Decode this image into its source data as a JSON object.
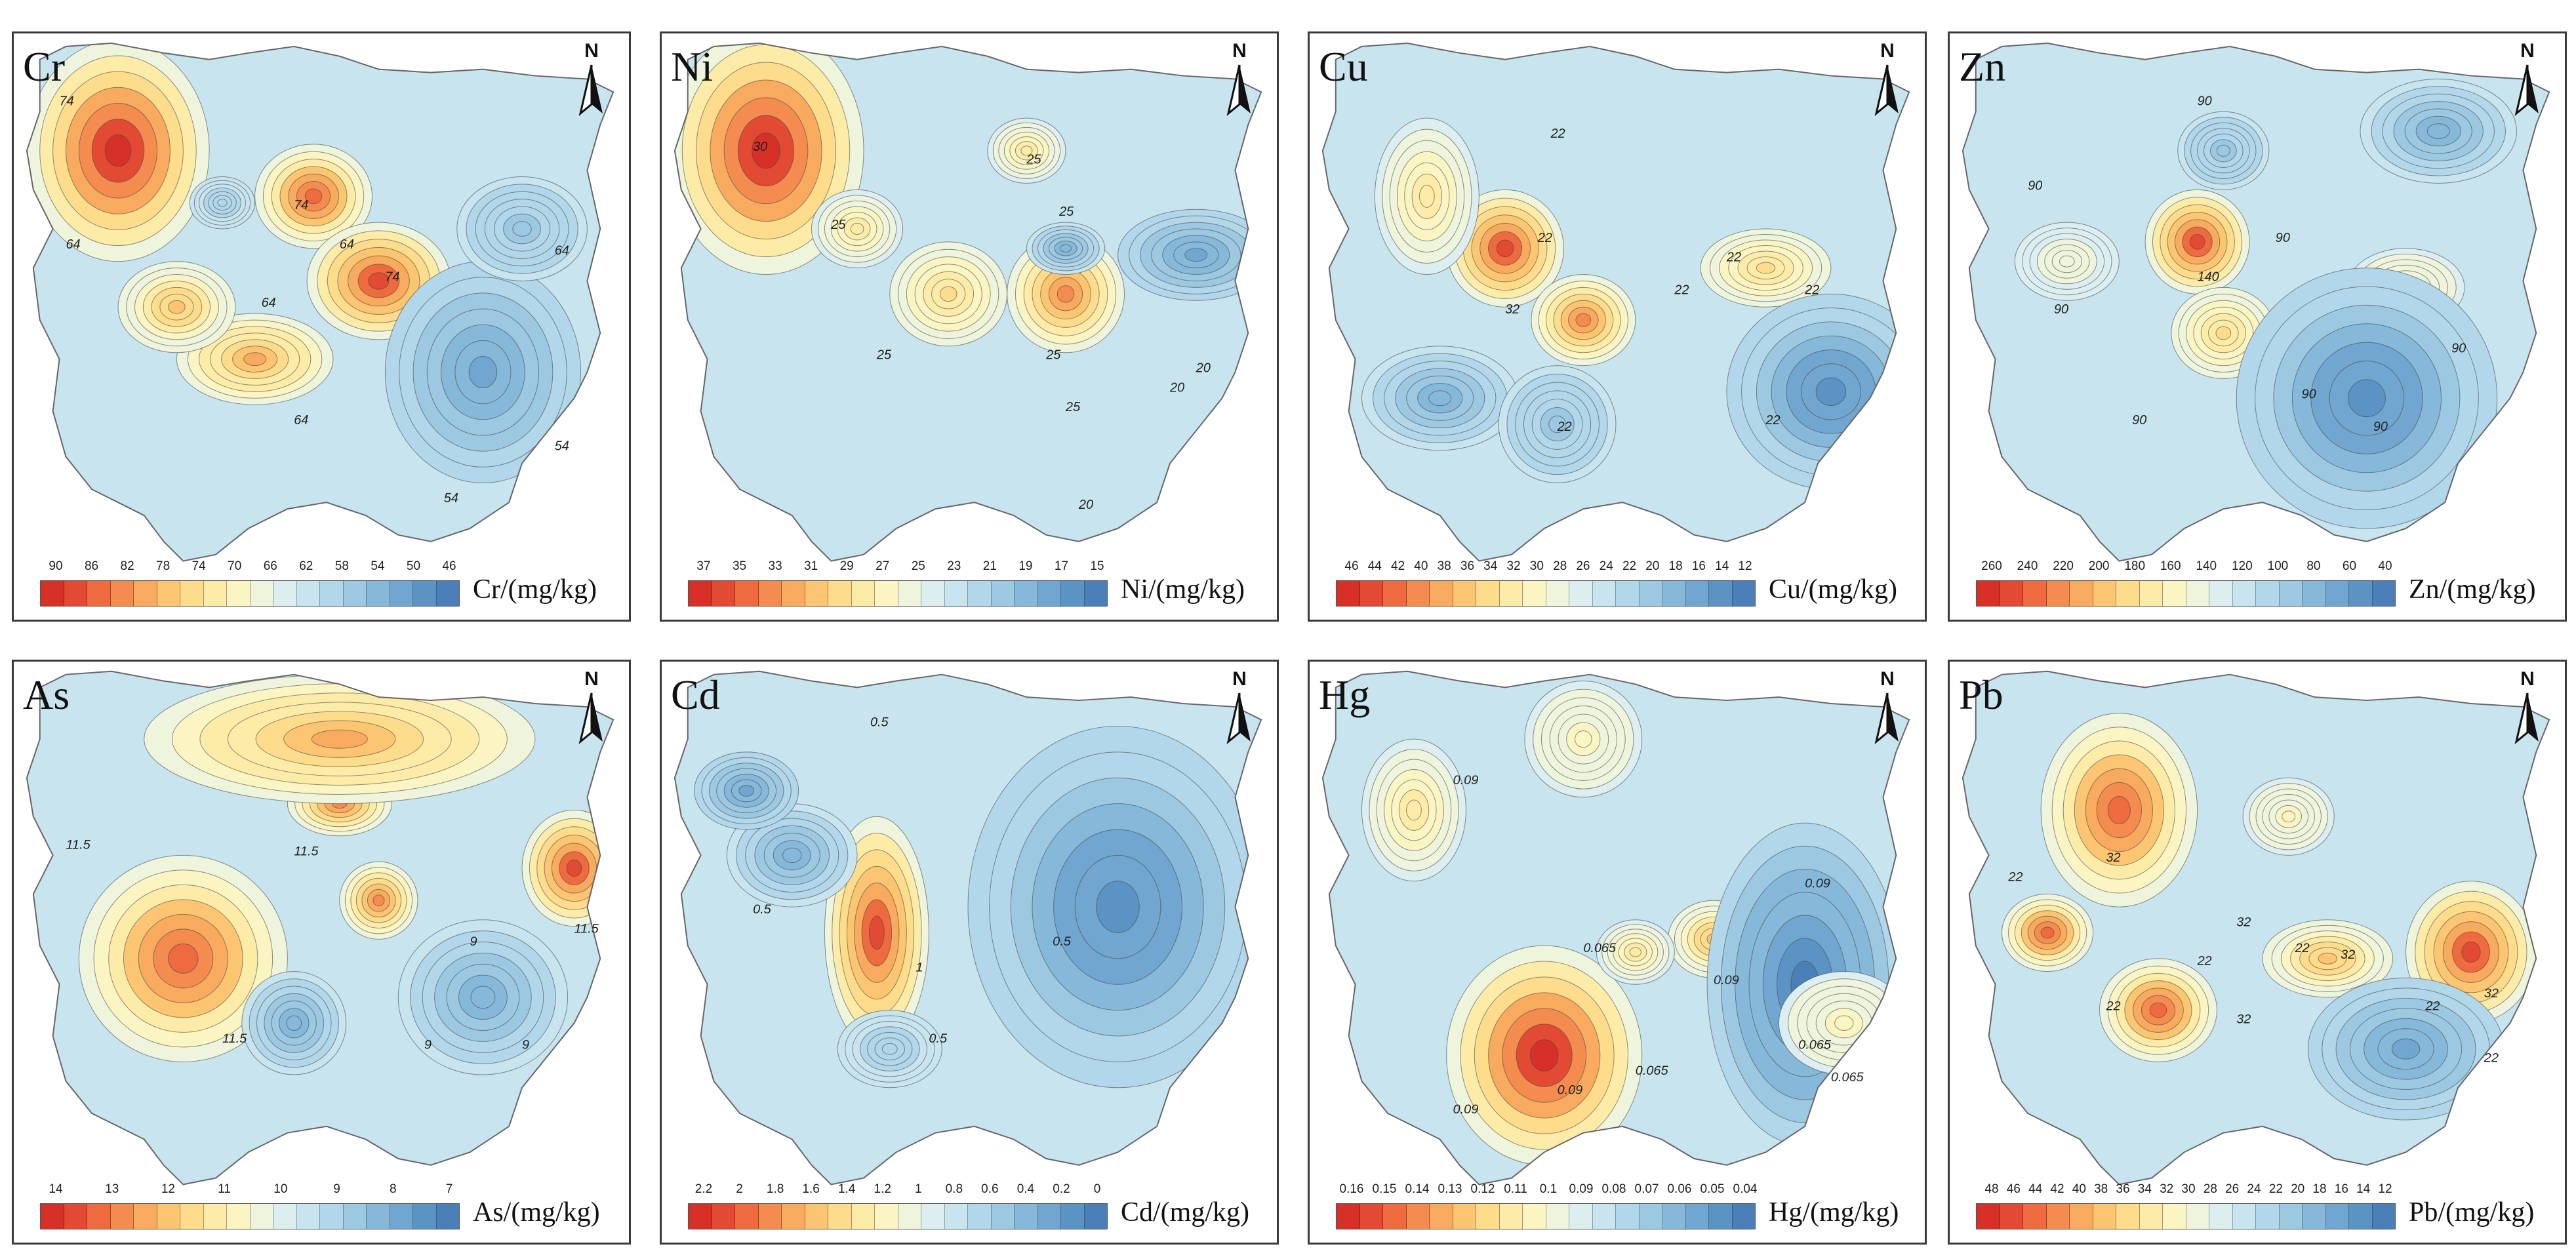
{
  "north_label": "N",
  "palette": [
    "#d73027",
    "#e34a33",
    "#ee6a3f",
    "#f48c4f",
    "#f8aa5e",
    "#fbc572",
    "#fddc8c",
    "#fdeca8",
    "#fbf5c4",
    "#eef5dc",
    "#dceef0",
    "#c8e4ef",
    "#b2d7ea",
    "#9cc8e2",
    "#86b8d9",
    "#70a6cf",
    "#5b93c4",
    "#4a7fb8"
  ],
  "panels": [
    {
      "element": "Cr",
      "unit": "Cr/(mg/kg)",
      "ticks": [
        "90",
        "86",
        "82",
        "78",
        "74",
        "70",
        "66",
        "62",
        "58",
        "54",
        "50",
        "46"
      ],
      "contour_labels": [
        "74",
        "64",
        "74",
        "64",
        "64",
        "74",
        "64",
        "64",
        "54",
        "54"
      ]
    },
    {
      "element": "Ni",
      "unit": "Ni/(mg/kg)",
      "ticks": [
        "37",
        "35",
        "33",
        "31",
        "29",
        "27",
        "25",
        "23",
        "21",
        "19",
        "17",
        "15"
      ],
      "contour_labels": [
        "30",
        "25",
        "25",
        "25",
        "25",
        "25",
        "20",
        "25",
        "20",
        "20"
      ]
    },
    {
      "element": "Cu",
      "unit": "Cu/(mg/kg)",
      "ticks": [
        "46",
        "44",
        "42",
        "40",
        "38",
        "36",
        "34",
        "32",
        "30",
        "28",
        "26",
        "24",
        "22",
        "20",
        "18",
        "16",
        "14",
        "12"
      ],
      "contour_labels": [
        "22",
        "22",
        "32",
        "22",
        "22",
        "22",
        "22",
        "22"
      ]
    },
    {
      "element": "Zn",
      "unit": "Zn/(mg/kg)",
      "ticks": [
        "260",
        "240",
        "220",
        "200",
        "180",
        "160",
        "140",
        "120",
        "100",
        "80",
        "60",
        "40"
      ],
      "contour_labels": [
        "90",
        "90",
        "140",
        "90",
        "90",
        "90",
        "90",
        "90",
        "90"
      ]
    },
    {
      "element": "As",
      "unit": "As/(mg/kg)",
      "ticks": [
        "14",
        "13",
        "12",
        "11",
        "10",
        "9",
        "8",
        "7"
      ],
      "contour_labels": [
        "11.5",
        "11.5",
        "11.5",
        "11.5",
        "9",
        "9",
        "9"
      ]
    },
    {
      "element": "Cd",
      "unit": "Cd/(mg/kg)",
      "ticks": [
        "2.2",
        "2",
        "1.8",
        "1.6",
        "1.4",
        "1.2",
        "1",
        "0.8",
        "0.6",
        "0.4",
        "0.2",
        "0"
      ],
      "contour_labels": [
        "0.5",
        "0.5",
        "0.5",
        "1",
        "0.5"
      ]
    },
    {
      "element": "Hg",
      "unit": "Hg/(mg/kg)",
      "ticks": [
        "0.16",
        "0.15",
        "0.14",
        "0.13",
        "0.12",
        "0.11",
        "0.1",
        "0.09",
        "0.08",
        "0.07",
        "0.06",
        "0.05",
        "0.04"
      ],
      "contour_labels": [
        "0.09",
        "0.065",
        "0.065",
        "0.09",
        "0.09",
        "0.065",
        "0.09",
        "0.09",
        "0.065"
      ]
    },
    {
      "element": "Pb",
      "unit": "Pb/(mg/kg)",
      "ticks": [
        "48",
        "46",
        "44",
        "42",
        "40",
        "38",
        "36",
        "34",
        "32",
        "30",
        "28",
        "26",
        "24",
        "22",
        "20",
        "18",
        "16",
        "14",
        "12"
      ],
      "contour_labels": [
        "32",
        "22",
        "22",
        "32",
        "22",
        "22",
        "32",
        "32",
        "22",
        "32",
        "22"
      ]
    }
  ]
}
